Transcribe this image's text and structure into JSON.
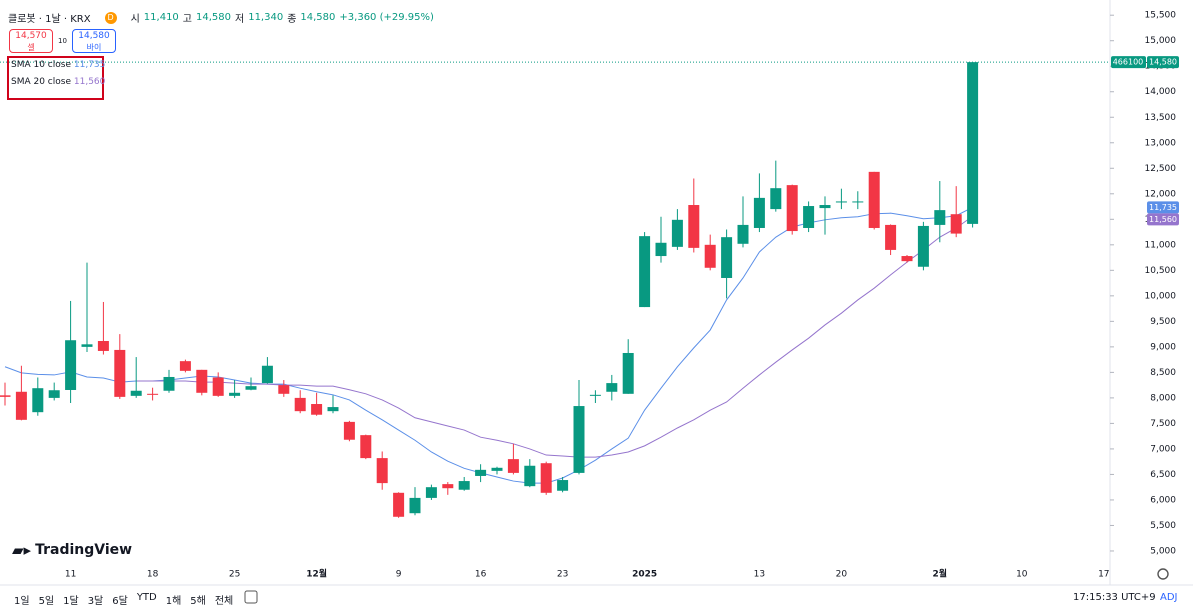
{
  "header": {
    "symbol": "클로봇 · 1날 · KRX",
    "badge": "D",
    "ohlc": [
      {
        "label": "시",
        "value": "11,410"
      },
      {
        "label": "고",
        "value": "14,580"
      },
      {
        "label": "저",
        "value": "11,340"
      },
      {
        "label": "종",
        "value": "14,580"
      }
    ],
    "change": "+3,360 (+29.95%)"
  },
  "trade": {
    "sell_price": "14,570",
    "sell": "셀",
    "spread": "10",
    "buy_price": "14,580",
    "buy": "바이"
  },
  "logo": "TradingView",
  "toolbar": {
    "ranges": [
      "1일",
      "5일",
      "1달",
      "3달",
      "6달",
      "YTD",
      "1해",
      "5해",
      "전체"
    ],
    "time": "17:15:33 UTC+9",
    "adj": "ADJ"
  },
  "chart_data": {
    "type": "candlestick",
    "categories": [
      null,
      null,
      null,
      null,
      "11",
      null,
      null,
      null,
      null,
      "18",
      null,
      null,
      null,
      null,
      "25",
      null,
      null,
      null,
      null,
      "12월",
      null,
      null,
      null,
      null,
      "9",
      null,
      null,
      null,
      null,
      "16",
      null,
      null,
      null,
      null,
      "23",
      null,
      null,
      null,
      null,
      "2025",
      null,
      null,
      null,
      null,
      null,
      null,
      "13",
      null,
      null,
      null,
      null,
      "20",
      null,
      null,
      null,
      null,
      null,
      "2월",
      null,
      null,
      null,
      null,
      "10",
      null,
      null,
      null,
      null,
      "17"
    ],
    "open": [
      8050,
      8120,
      7720,
      8000,
      8155,
      9000,
      9115,
      8940,
      8040,
      8080,
      8140,
      8720,
      8550,
      8400,
      8040,
      8160,
      8290,
      8250,
      8000,
      7880,
      7740,
      7530,
      7270,
      6820,
      6140,
      5740,
      6040,
      6310,
      6200,
      6470,
      6570,
      6800,
      6270,
      6720,
      6180,
      6530,
      8040,
      8120,
      8080,
      9780,
      10780,
      10960,
      11780,
      11000,
      10350,
      11020,
      11330,
      11700,
      12170,
      11330,
      11720,
      11830,
      11840,
      12430,
      11390,
      10780,
      10570,
      11390,
      11600,
      11410,
      null,
      null,
      null,
      null,
      null,
      null,
      null,
      null
    ],
    "high": [
      8300,
      8630,
      8400,
      8300,
      9900,
      10650,
      9880,
      9250,
      8800,
      8200,
      8550,
      8750,
      8550,
      8500,
      8350,
      8400,
      8800,
      8350,
      8150,
      8100,
      8050,
      7550,
      7280,
      6950,
      6150,
      6250,
      6300,
      6350,
      6450,
      6700,
      6650,
      7100,
      6800,
      6750,
      6450,
      8350,
      8150,
      8450,
      9150,
      11250,
      11550,
      11700,
      12300,
      11200,
      11300,
      11950,
      12400,
      12650,
      12180,
      11850,
      11950,
      12100,
      12050,
      12430,
      11400,
      10800,
      11450,
      12250,
      12150,
      14580,
      null,
      null,
      null,
      null,
      null,
      null,
      null,
      null
    ],
    "low": [
      7850,
      7560,
      7650,
      7950,
      7900,
      8900,
      8850,
      7980,
      8000,
      7950,
      8100,
      8500,
      8050,
      8020,
      8000,
      8150,
      8280,
      8020,
      7700,
      7650,
      7700,
      7150,
      6800,
      6200,
      5650,
      5700,
      6000,
      6100,
      6180,
      6350,
      6500,
      6500,
      6250,
      6100,
      6150,
      6500,
      7900,
      7950,
      8080,
      9780,
      10650,
      10900,
      10850,
      10500,
      9950,
      10950,
      11250,
      11650,
      11200,
      11250,
      11200,
      11700,
      11700,
      11300,
      10800,
      10650,
      10500,
      11050,
      11150,
      11340,
      null,
      null,
      null,
      null,
      null,
      null,
      null,
      null
    ],
    "close": [
      8020,
      7570,
      8190,
      8150,
      9130,
      9050,
      8920,
      8020,
      8140,
      8060,
      8410,
      8530,
      8100,
      8040,
      8100,
      8230,
      8630,
      8080,
      7740,
      7670,
      7820,
      7180,
      6820,
      6330,
      5670,
      6040,
      6250,
      6230,
      6370,
      6590,
      6630,
      6530,
      6670,
      6140,
      6390,
      7840,
      8060,
      8290,
      8880,
      11170,
      11040,
      11490,
      10940,
      10550,
      11150,
      11390,
      11920,
      12110,
      11270,
      11760,
      11780,
      11850,
      11850,
      11330,
      10900,
      10680,
      11370,
      11680,
      11220,
      14580,
      null,
      null,
      null,
      null,
      null,
      null,
      null,
      null
    ],
    "up_color": "#089981",
    "down_color": "#f23645",
    "series": [
      {
        "name": "SMA 10 close",
        "color": "#5b8fe8",
        "last_label": "11,735",
        "values": [
          8610,
          8490,
          8460,
          8450,
          8510,
          8410,
          8390,
          8310,
          8330,
          8330,
          8350,
          8390,
          8430,
          8410,
          8350,
          8290,
          8270,
          8270,
          8190,
          8120,
          8060,
          7960,
          7760,
          7570,
          7370,
          7170,
          6940,
          6760,
          6620,
          6530,
          6450,
          6370,
          6330,
          6330,
          6430,
          6590,
          6780,
          7000,
          7210,
          7760,
          8190,
          8610,
          8980,
          9330,
          9920,
          10350,
          10860,
          11150,
          11350,
          11430,
          11490,
          11530,
          11550,
          11610,
          11620,
          11570,
          11510,
          11530,
          11570,
          11735,
          null,
          null,
          null,
          null,
          null,
          null,
          null,
          null
        ]
      },
      {
        "name": "SMA 20 close",
        "color": "#9575cd",
        "last_label": "11,560",
        "values": [
          null,
          null,
          null,
          null,
          null,
          null,
          null,
          null,
          8330,
          8330,
          8330,
          8330,
          8310,
          8310,
          8290,
          8270,
          8270,
          8250,
          8250,
          8230,
          8230,
          8160,
          8080,
          7960,
          7800,
          7610,
          7530,
          7450,
          7370,
          7230,
          7170,
          7100,
          7000,
          6880,
          6860,
          6840,
          6840,
          6880,
          6940,
          7060,
          7230,
          7410,
          7570,
          7760,
          7920,
          8190,
          8450,
          8700,
          8940,
          9170,
          9430,
          9660,
          9920,
          10150,
          10410,
          10660,
          10900,
          11150,
          11330,
          11560,
          null,
          null,
          null,
          null,
          null,
          null,
          null,
          null
        ]
      }
    ],
    "last_price": {
      "value": 14580,
      "label": "14,580",
      "volume": "466100"
    },
    "ylim": [
      4725,
      15700
    ],
    "yticks": [
      {
        "value": 5000,
        "label": "5,000"
      },
      {
        "value": 5500,
        "label": "5,500"
      },
      {
        "value": 6000,
        "label": "6,000"
      },
      {
        "value": 6500,
        "label": "6,500"
      },
      {
        "value": 7000,
        "label": "7,000"
      },
      {
        "value": 7500,
        "label": "7,500"
      },
      {
        "value": 8000,
        "label": "8,000"
      },
      {
        "value": 8500,
        "label": "8,500"
      },
      {
        "value": 9000,
        "label": "9,000"
      },
      {
        "value": 9500,
        "label": "9,500"
      },
      {
        "value": 10000,
        "label": "10,000"
      },
      {
        "value": 10500,
        "label": "10,500"
      },
      {
        "value": 11000,
        "label": "11,000"
      },
      {
        "value": 11500,
        "label": "11,500"
      },
      {
        "value": 12000,
        "label": "12,000"
      },
      {
        "value": 12500,
        "label": "12,500"
      },
      {
        "value": 13000,
        "label": "13,000"
      },
      {
        "value": 13500,
        "label": "13,500"
      },
      {
        "value": 14000,
        "label": "14,000"
      },
      {
        "value": 14500,
        "label": "14,500"
      },
      {
        "value": 15000,
        "label": "15,000"
      },
      {
        "value": 15500,
        "label": "15,500"
      }
    ],
    "grid": false
  }
}
